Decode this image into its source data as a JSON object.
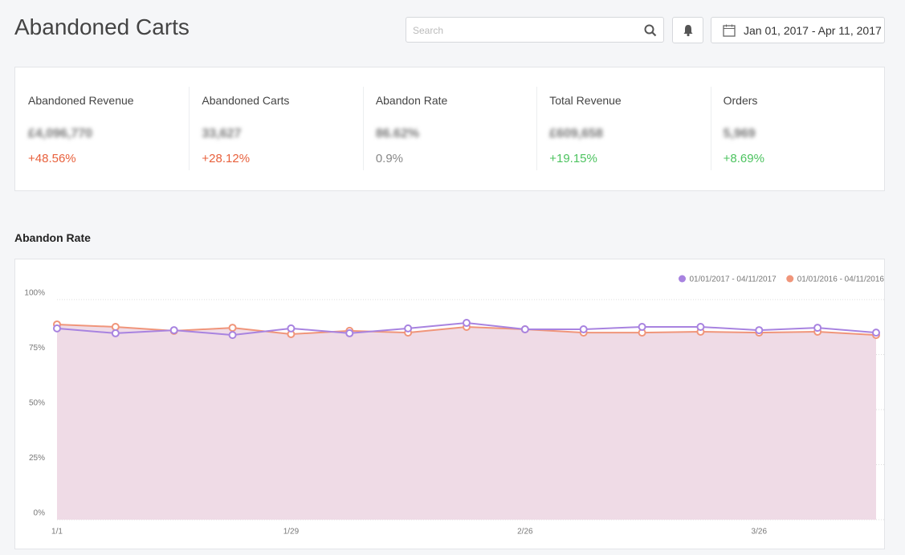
{
  "header": {
    "title": "Abandoned Carts",
    "search_placeholder": "Search",
    "date_range": "Jan 01, 2017 - Apr 11, 2017"
  },
  "stats": [
    {
      "label": "Abandoned Revenue",
      "value": "£4,096,770",
      "change": "+48.56%",
      "color": "#e8603c"
    },
    {
      "label": "Abandoned Carts",
      "value": "33,627",
      "change": "+28.12%",
      "color": "#e8603c"
    },
    {
      "label": "Abandon Rate",
      "value": "86.62%",
      "change": "0.9%",
      "color": "#888888"
    },
    {
      "label": "Total Revenue",
      "value": "£609,658",
      "change": "+19.15%",
      "color": "#4cc35f"
    },
    {
      "label": "Orders",
      "value": "5,969",
      "change": "+8.69%",
      "color": "#4cc35f"
    }
  ],
  "chart_data": {
    "type": "line",
    "title": "Abandon Rate",
    "categories": [
      "1/1",
      null,
      null,
      null,
      "1/29",
      null,
      null,
      null,
      "2/26",
      null,
      null,
      null,
      "3/26",
      null,
      null
    ],
    "series": [
      {
        "name": "01/01/2017 - 04/11/2017",
        "color": "#a883e0",
        "values": [
          86.9,
          84.7,
          86.1,
          83.9,
          86.9,
          84.7,
          86.9,
          89.4,
          86.5,
          86.5,
          87.6,
          87.6,
          86.1,
          87.2,
          85.0
        ]
      },
      {
        "name": "01/01/2016 - 04/11/2016",
        "color": "#f0957a",
        "values": [
          88.7,
          87.6,
          85.8,
          87.2,
          84.3,
          85.8,
          85.0,
          87.6,
          86.5,
          85.0,
          85.0,
          85.4,
          85.0,
          85.4,
          83.9
        ]
      }
    ],
    "ylim": [
      0,
      100
    ],
    "yticks": [
      {
        "value": 0,
        "label": "0%"
      },
      {
        "value": 25,
        "label": "25%"
      },
      {
        "value": 50,
        "label": "50%"
      },
      {
        "value": 75,
        "label": "75%"
      },
      {
        "value": 100,
        "label": "100%"
      }
    ],
    "grid": true,
    "legend": "top-right"
  }
}
